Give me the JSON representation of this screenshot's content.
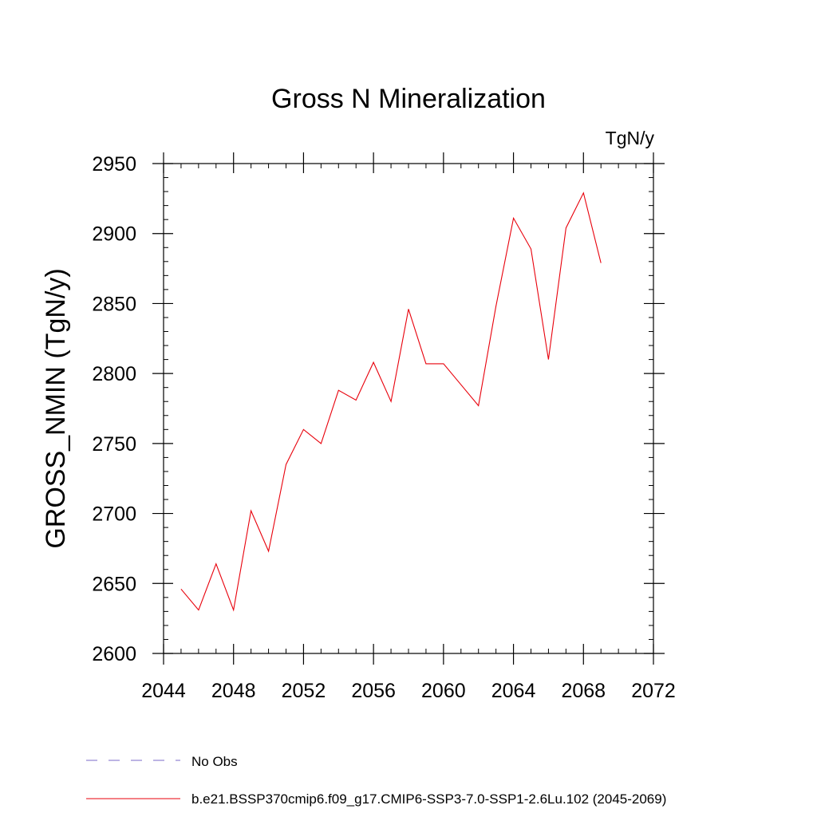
{
  "chart_data": {
    "type": "line",
    "title": "Gross N Mineralization",
    "units_label": "TgN/y",
    "ylabel": "GROSS_NMIN  (TgN/y)",
    "xlabel": "",
    "xlim": [
      2044,
      2072
    ],
    "ylim": [
      2600,
      2950
    ],
    "x_ticks": [
      2044,
      2048,
      2052,
      2056,
      2060,
      2064,
      2068,
      2072
    ],
    "y_ticks": [
      2600,
      2650,
      2700,
      2750,
      2800,
      2850,
      2900,
      2950
    ],
    "x_minor_step": 1,
    "y_minor_step": 10,
    "grid": false,
    "legend_placement": "bottom-left, below plot",
    "legend": [
      {
        "label": "No Obs",
        "color": "#7b68c8",
        "style": "dashed"
      },
      {
        "label": "b.e21.BSSP370cmip6.f09_g17.CMIP6-SSP3-7.0-SSP1-2.6Lu.102 (2045-2069)",
        "color": "#e8000b",
        "style": "solid"
      }
    ],
    "series": [
      {
        "name": "b.e21.BSSP370cmip6.f09_g17.CMIP6-SSP3-7.0-SSP1-2.6Lu.102 (2045-2069)",
        "color": "#e8000b",
        "x": [
          2045,
          2046,
          2047,
          2048,
          2049,
          2050,
          2051,
          2052,
          2053,
          2054,
          2055,
          2056,
          2057,
          2058,
          2059,
          2060,
          2061,
          2062,
          2063,
          2064,
          2065,
          2066,
          2067,
          2068,
          2069
        ],
        "values": [
          2646,
          2631,
          2664,
          2631,
          2702,
          2673,
          2735,
          2760,
          2750,
          2788,
          2781,
          2808,
          2780,
          2846,
          2807,
          2807,
          2792,
          2777,
          2848,
          2911,
          2889,
          2810,
          2904,
          2929,
          2879
        ]
      }
    ]
  }
}
